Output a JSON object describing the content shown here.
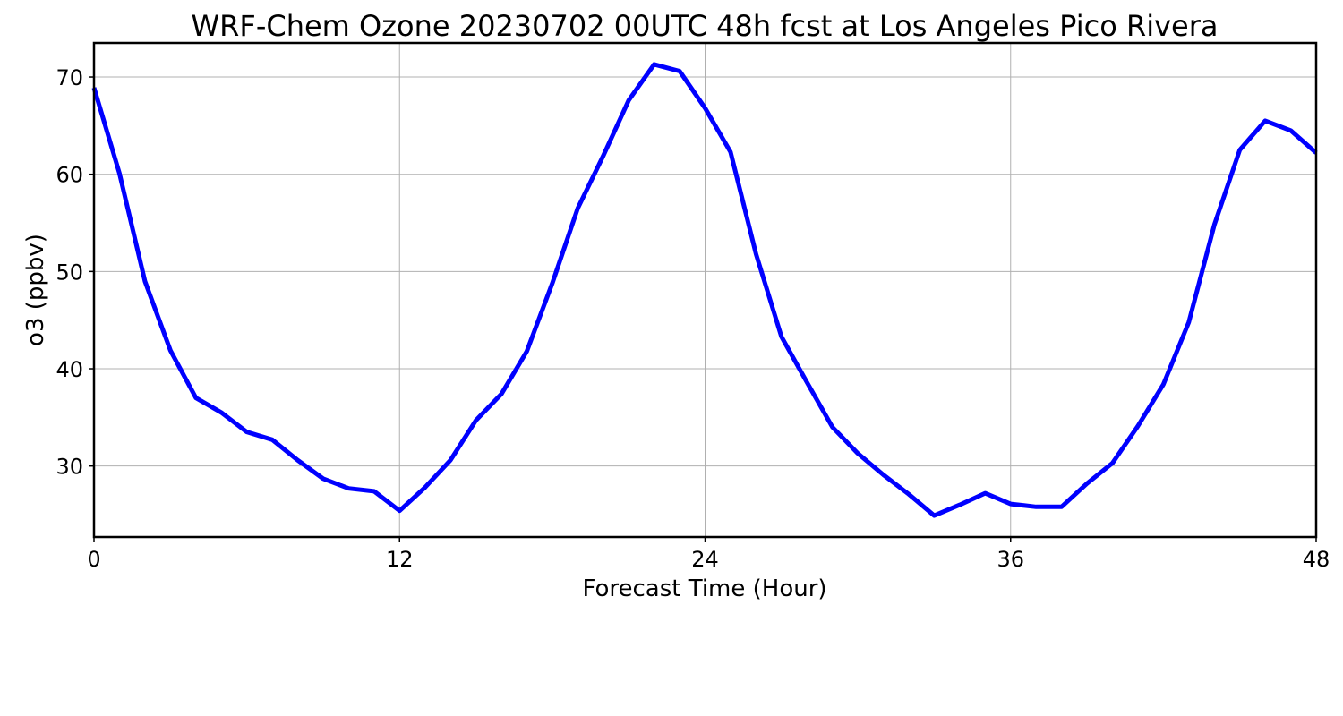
{
  "chart_data": {
    "type": "line",
    "title": "WRF-Chem Ozone  20230702 00UTC 48h fcst at Los Angeles Pico Rivera",
    "xlabel": "Forecast Time (Hour)",
    "ylabel": "o3  (ppbv)",
    "xlim": [
      0,
      48
    ],
    "ylim": [
      22.7,
      73.5
    ],
    "xticks": [
      0,
      12,
      24,
      36,
      48
    ],
    "yticks": [
      30,
      40,
      50,
      60,
      70
    ],
    "grid": true,
    "color": "#0000ff",
    "series": [
      {
        "x": [
          0,
          1,
          2,
          3,
          4,
          5,
          6,
          7,
          8,
          9,
          10,
          11,
          12,
          13,
          14,
          15,
          16,
          17,
          18,
          19,
          20,
          21,
          22,
          23,
          24,
          25,
          26,
          27,
          28,
          29,
          30,
          31,
          32,
          33,
          34,
          35,
          36,
          37,
          38,
          39,
          40,
          41,
          42,
          43,
          44,
          45,
          46,
          47,
          48
        ],
        "values": [
          68.9,
          60.1,
          49.0,
          41.9,
          37.0,
          35.5,
          33.5,
          32.7,
          30.6,
          28.7,
          27.7,
          27.4,
          25.4,
          27.8,
          30.6,
          34.7,
          37.4,
          41.8,
          48.8,
          56.5,
          61.9,
          67.6,
          71.3,
          70.6,
          66.8,
          62.3,
          51.8,
          43.3,
          38.6,
          34.0,
          31.3,
          29.1,
          27.1,
          24.9,
          26.0,
          27.2,
          26.1,
          25.8,
          25.8,
          28.2,
          30.3,
          34.1,
          38.4,
          44.8,
          54.8,
          62.5,
          65.5,
          64.5,
          62.2
        ]
      }
    ]
  }
}
